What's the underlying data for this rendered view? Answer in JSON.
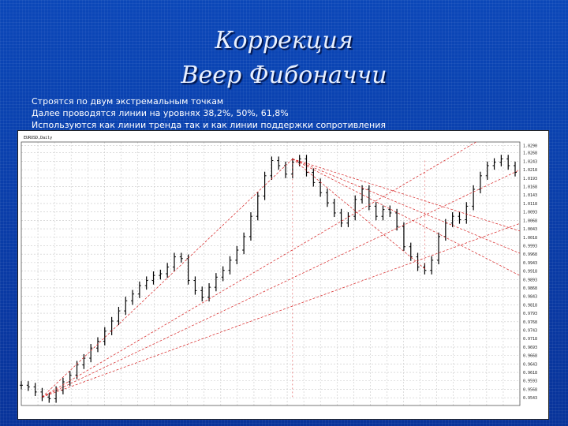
{
  "slide": {
    "title_line1": "Коррекция",
    "title_line2": "Веер Фибоначчи",
    "notes": [
      "Строятся по двум экстремальным точкам",
      "Далее проводятся линии на уровнях 38,2%, 50%, 61,8%",
      "Используются как линии тренда так и как линии поддержки сопротивления"
    ]
  },
  "colors": {
    "background": "#0a3a9e",
    "candles": "#000000",
    "fan_lines": "#d62020",
    "grid": "#c8c8c8"
  },
  "chart_data": {
    "type": "line",
    "title": "",
    "xlabel": "",
    "ylabel": "",
    "grid": true,
    "price_axis": "right",
    "ylim": [
      0.952,
      1.03
    ],
    "y_ticks": [
      1.029,
      1.0268,
      1.0243,
      1.0218,
      1.0193,
      1.0168,
      1.0143,
      1.0118,
      1.0093,
      1.0068,
      1.0043,
      1.0018,
      0.9993,
      0.9968,
      0.9943,
      0.9918,
      0.9893,
      0.9868,
      0.9843,
      0.9818,
      0.9793,
      0.9768,
      0.9743,
      0.9718,
      0.9693,
      0.9668,
      0.9643,
      0.9618,
      0.9593,
      0.9568,
      0.9543
    ],
    "price_series": {
      "name": "EURUSD,Daily",
      "x": [
        0,
        3,
        6,
        9,
        12,
        15,
        18,
        21,
        24,
        27,
        30,
        33,
        36,
        39,
        42,
        45,
        48,
        51,
        54,
        57,
        60,
        63,
        66,
        69,
        72,
        75,
        78,
        81,
        84,
        87,
        90,
        93,
        96,
        99,
        102,
        105,
        108,
        111,
        114,
        117,
        120,
        123,
        126,
        129,
        132,
        135,
        138,
        141,
        144,
        147,
        150,
        153,
        156,
        159,
        162,
        165,
        168,
        171,
        174,
        177,
        180,
        183,
        186,
        189,
        192,
        195,
        198,
        201,
        204,
        207,
        210,
        213
      ],
      "y": [
        0.958,
        0.9575,
        0.956,
        0.9545,
        0.954,
        0.9565,
        0.959,
        0.961,
        0.964,
        0.966,
        0.969,
        0.971,
        0.974,
        0.977,
        0.98,
        0.983,
        0.985,
        0.9875,
        0.989,
        0.9905,
        0.991,
        0.993,
        0.996,
        0.9955,
        0.989,
        0.986,
        0.984,
        0.987,
        0.99,
        0.992,
        0.995,
        0.998,
        1.002,
        1.008,
        1.014,
        1.02,
        1.0245,
        1.023,
        1.0205,
        1.024,
        1.025,
        1.021,
        1.018,
        1.015,
        1.012,
        1.009,
        1.006,
        1.008,
        1.013,
        1.016,
        1.011,
        1.008,
        1.01,
        1.009,
        1.005,
        0.999,
        0.996,
        0.993,
        0.992,
        0.995,
        1.002,
        1.006,
        1.008,
        1.007,
        1.011,
        1.016,
        1.02,
        1.023,
        1.024,
        1.025,
        1.023,
        1.021
      ]
    },
    "fan": {
      "base_point": {
        "x": 9,
        "y": 0.9545
      },
      "top_point": {
        "x": 117,
        "y": 1.025
      },
      "ray_levels": [
        0.382,
        0.5,
        0.618
      ]
    },
    "fan2": {
      "base_point": {
        "x": 117,
        "y": 1.025
      },
      "low_point": {
        "x": 174,
        "y": 0.9925
      },
      "ray_levels": [
        0.382,
        0.5,
        0.618
      ]
    }
  }
}
